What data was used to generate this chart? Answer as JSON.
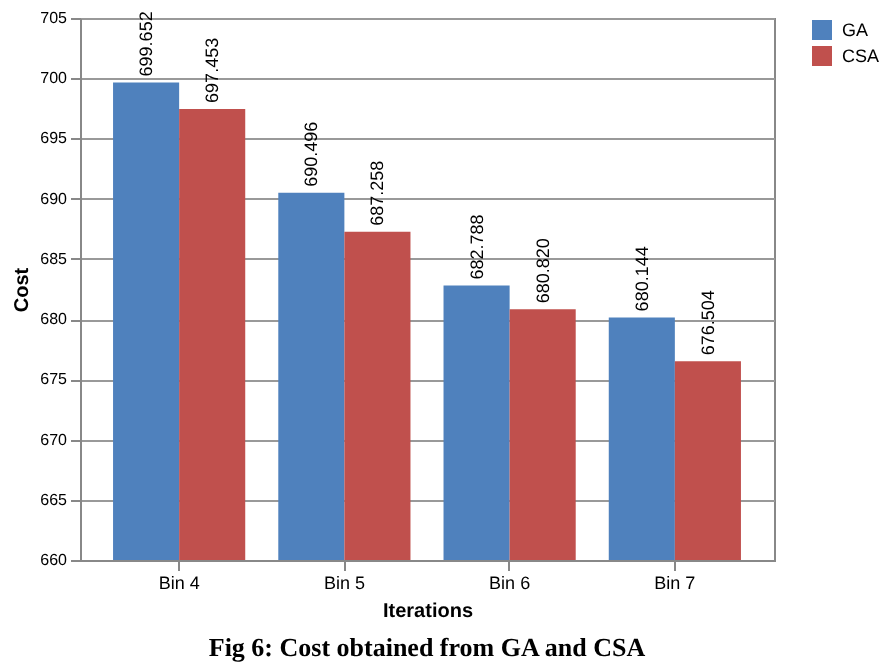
{
  "chart_data": {
    "type": "bar",
    "xlabel": "Iterations",
    "ylabel": "Cost",
    "categories": [
      "Bin 4",
      "Bin 5",
      "Bin 6",
      "Bin 7"
    ],
    "series": [
      {
        "name": "GA",
        "color": "#4f81bd",
        "values": [
          699.652,
          690.496,
          682.788,
          680.144
        ],
        "value_labels": [
          "699.652",
          "690.496",
          "682.788",
          "680.144"
        ]
      },
      {
        "name": "CSA",
        "color": "#c0504d",
        "values": [
          697.453,
          687.258,
          680.82,
          676.504
        ],
        "value_labels": [
          "697.453",
          "687.258",
          "680.820",
          "676.504"
        ]
      }
    ],
    "ylim": [
      660,
      705
    ],
    "yticks": [
      660,
      665,
      670,
      675,
      680,
      685,
      690,
      695,
      700,
      705
    ],
    "grid": "y",
    "legend": "right",
    "annotations": [
      "Fig 6:  Cost obtained from GA and CSA"
    ]
  }
}
